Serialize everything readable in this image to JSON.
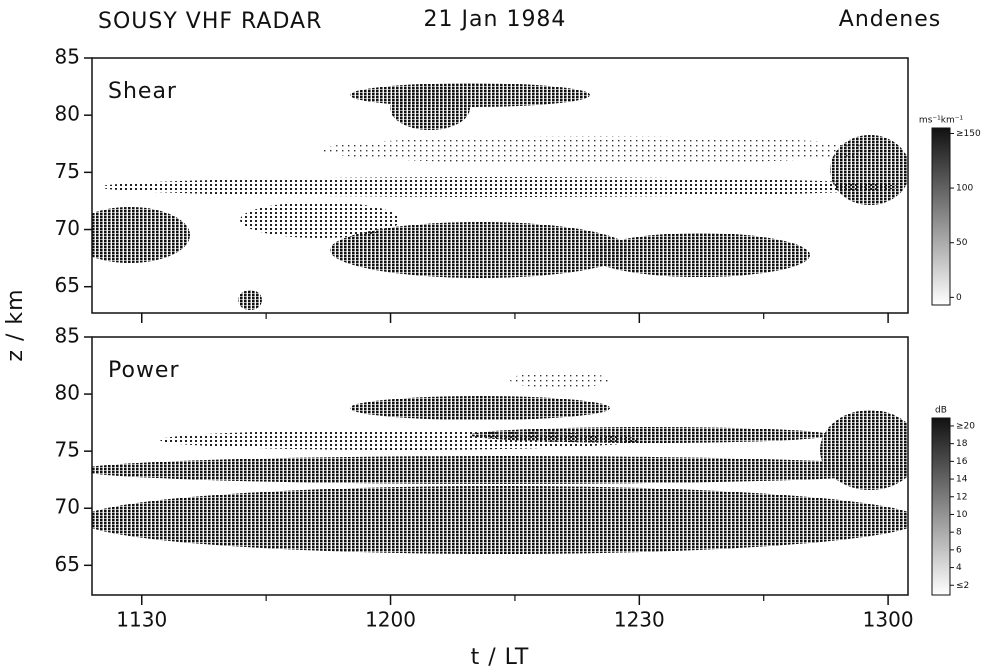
{
  "header": {
    "title": "SOUSY  VHF  RADAR",
    "date": "21 Jan 1984",
    "location": "Andenes"
  },
  "ylabel": "z / km",
  "chart_data": [
    {
      "type": "heatmap",
      "panel_label": "Shear",
      "xlim": [
        684,
        782.4
      ],
      "xticks": [
        690,
        720,
        750,
        780
      ],
      "xminor_ticks": [
        705,
        735,
        765
      ],
      "ylim": [
        62.7,
        85
      ],
      "yticks": [
        65,
        70,
        75,
        80,
        85
      ],
      "colorbar": {
        "label": "ms⁻¹km⁻¹",
        "lim": [
          -7,
          155
        ],
        "ticks": [
          {
            "value": 150,
            "label": "≥150"
          },
          100,
          50,
          0
        ]
      }
    },
    {
      "type": "heatmap",
      "panel_label": "Power",
      "xlabel": "t / LT",
      "xlim": [
        684,
        782.4
      ],
      "xticks": [
        {
          "value": 690,
          "label": "1130"
        },
        {
          "value": 720,
          "label": "1200"
        },
        {
          "value": 750,
          "label": "1230"
        },
        {
          "value": 780,
          "label": "1300"
        }
      ],
      "xminor_ticks": [
        705,
        735,
        765
      ],
      "ylim": [
        62.4,
        85
      ],
      "yticks": [
        65,
        70,
        75,
        80,
        85
      ],
      "colorbar": {
        "label": "dB",
        "lim": [
          0.9,
          20.9
        ],
        "ticks": [
          {
            "value": 20,
            "label": "≥20"
          },
          18,
          16,
          14,
          12,
          10,
          8,
          6,
          4,
          {
            "value": 2,
            "label": "≤2"
          }
        ]
      }
    }
  ]
}
